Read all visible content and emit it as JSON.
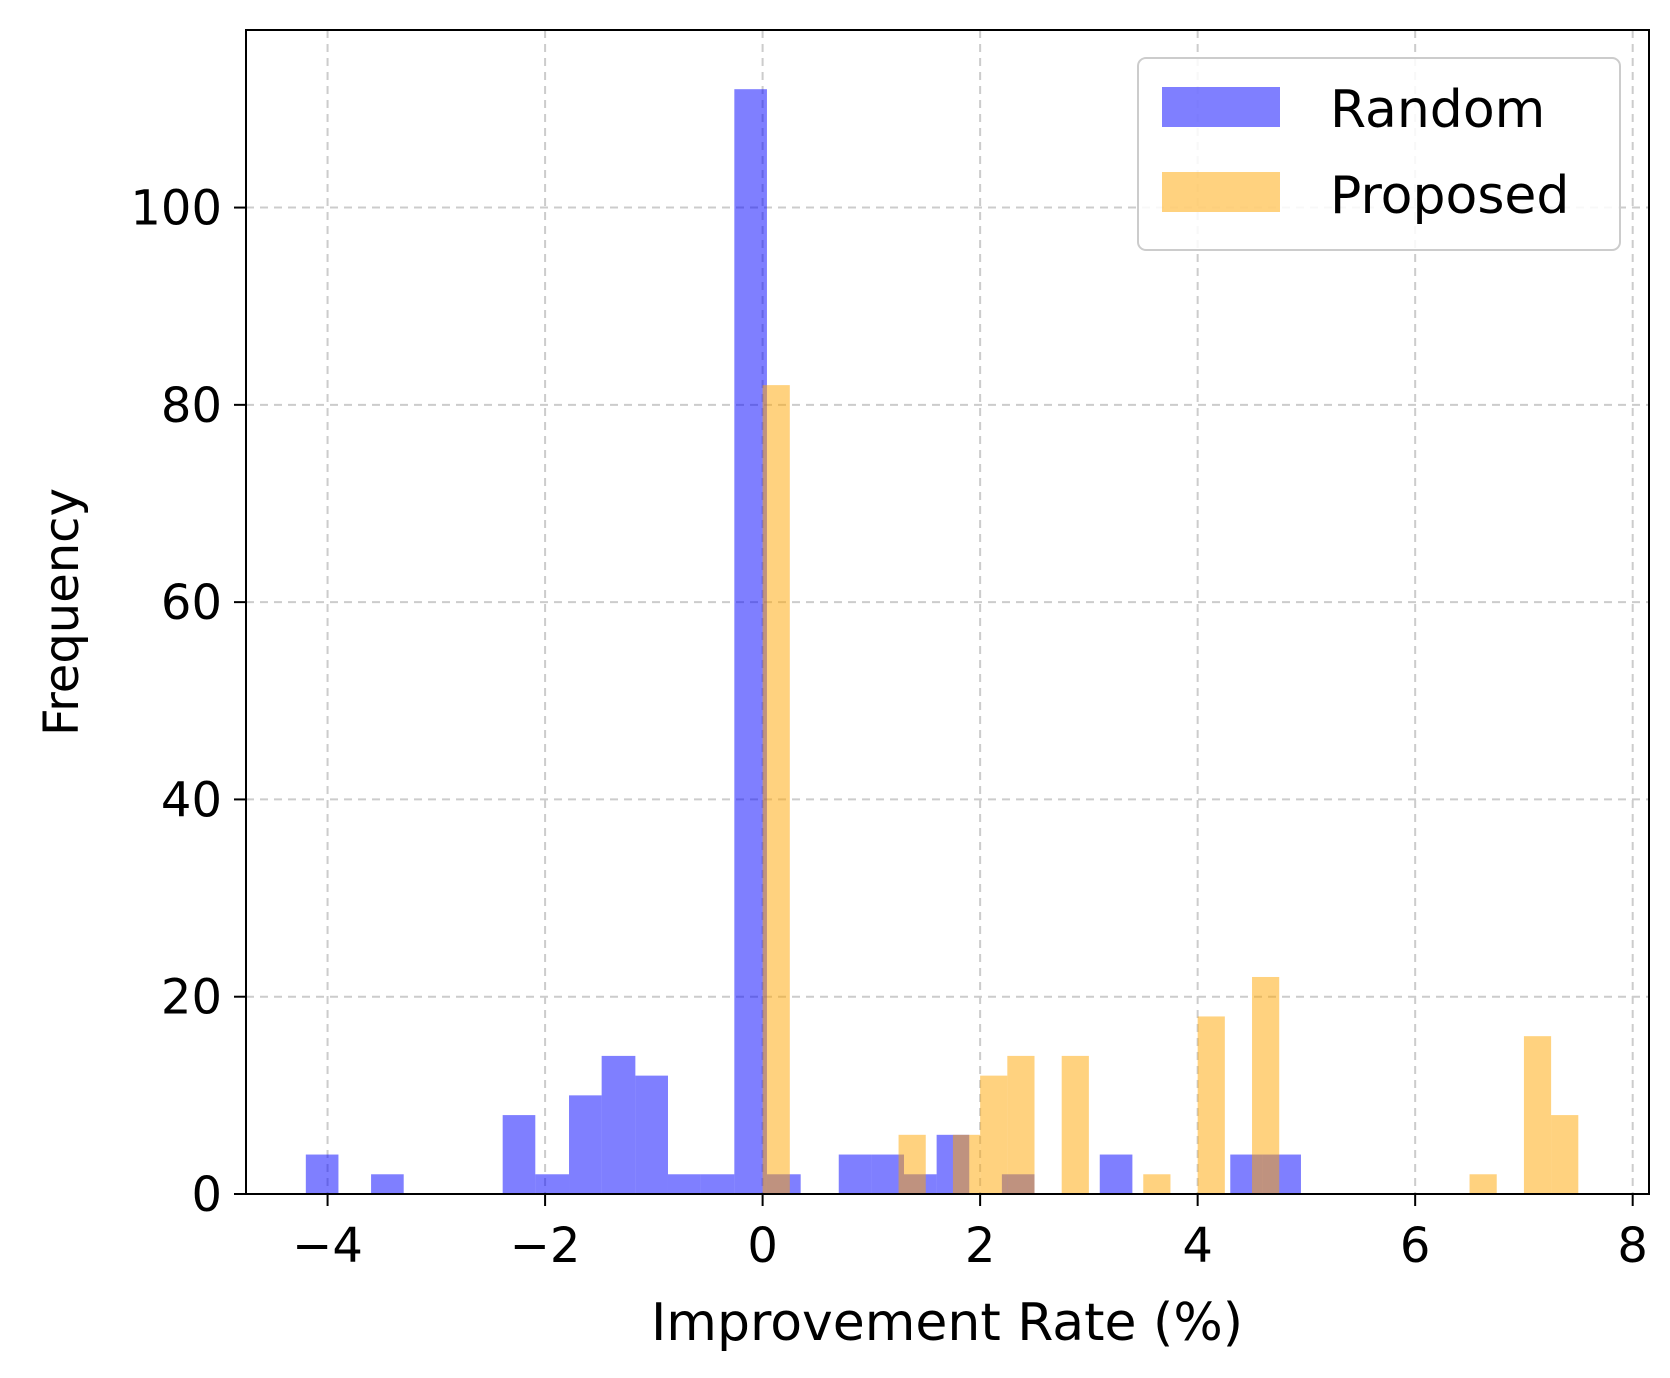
{
  "chart_data": {
    "type": "bar",
    "subtype": "histogram",
    "title": "",
    "xlabel": "Improvement Rate (%)",
    "ylabel": "Frequency",
    "xlim": [
      -4.75,
      8.15
    ],
    "ylim": [
      0,
      118
    ],
    "xticks": [
      -4,
      -2,
      0,
      2,
      4,
      6,
      8
    ],
    "xtick_labels": [
      "−4",
      "−2",
      "0",
      "2",
      "4",
      "6",
      "8"
    ],
    "yticks": [
      0,
      20,
      40,
      60,
      80,
      100
    ],
    "ytick_labels": [
      "0",
      "20",
      "40",
      "60",
      "80",
      "100"
    ],
    "grid": true,
    "legend_position": "top-right",
    "series": [
      {
        "name": "Random",
        "color": "#0000ff",
        "alpha": 0.5,
        "bins": [
          {
            "x0": -4.2,
            "x1": -3.9,
            "count": 4
          },
          {
            "x0": -3.6,
            "x1": -3.3,
            "count": 2
          },
          {
            "x0": -2.39,
            "x1": -2.09,
            "count": 8
          },
          {
            "x0": -2.09,
            "x1": -1.78,
            "count": 2
          },
          {
            "x0": -1.78,
            "x1": -1.48,
            "count": 10
          },
          {
            "x0": -1.48,
            "x1": -1.17,
            "count": 14
          },
          {
            "x0": -1.17,
            "x1": -0.87,
            "count": 12
          },
          {
            "x0": -0.87,
            "x1": -0.57,
            "count": 2
          },
          {
            "x0": -0.57,
            "x1": -0.26,
            "count": 2
          },
          {
            "x0": -0.26,
            "x1": 0.04,
            "count": 112
          },
          {
            "x0": 0.04,
            "x1": 0.35,
            "count": 2
          },
          {
            "x0": 0.7,
            "x1": 1.0,
            "count": 4
          },
          {
            "x0": 1.0,
            "x1": 1.3,
            "count": 4
          },
          {
            "x0": 1.3,
            "x1": 1.6,
            "count": 2
          },
          {
            "x0": 1.6,
            "x1": 1.9,
            "count": 6
          },
          {
            "x0": 2.2,
            "x1": 2.5,
            "count": 2
          },
          {
            "x0": 3.1,
            "x1": 3.4,
            "count": 4
          },
          {
            "x0": 4.3,
            "x1": 4.6,
            "count": 4
          },
          {
            "x0": 4.6,
            "x1": 4.95,
            "count": 4
          }
        ]
      },
      {
        "name": "Proposed",
        "color": "#ffa500",
        "alpha": 0.5,
        "bins": [
          {
            "x0": 0.0,
            "x1": 0.25,
            "count": 82
          },
          {
            "x0": 1.25,
            "x1": 1.5,
            "count": 6
          },
          {
            "x0": 1.75,
            "x1": 2.0,
            "count": 6
          },
          {
            "x0": 2.0,
            "x1": 2.25,
            "count": 12
          },
          {
            "x0": 2.25,
            "x1": 2.5,
            "count": 14
          },
          {
            "x0": 2.75,
            "x1": 3.0,
            "count": 14
          },
          {
            "x0": 3.5,
            "x1": 3.75,
            "count": 2
          },
          {
            "x0": 4.0,
            "x1": 4.25,
            "count": 18
          },
          {
            "x0": 4.5,
            "x1": 4.75,
            "count": 22
          },
          {
            "x0": 6.5,
            "x1": 6.75,
            "count": 2
          },
          {
            "x0": 7.0,
            "x1": 7.25,
            "count": 16
          },
          {
            "x0": 7.25,
            "x1": 7.5,
            "count": 8
          }
        ]
      }
    ]
  }
}
